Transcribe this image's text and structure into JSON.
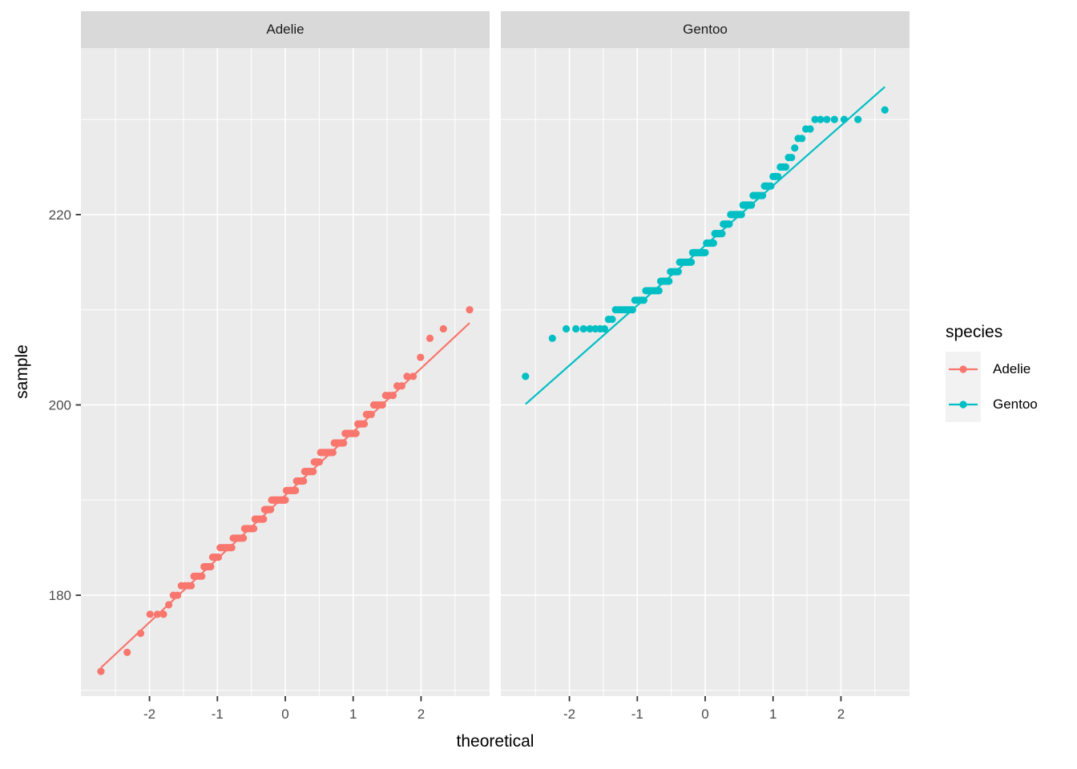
{
  "chart_data": {
    "type": "scatter",
    "chart_kind": "qq-plot",
    "xlabel": "theoretical",
    "ylabel": "sample",
    "x_ticks": [
      -2,
      -1,
      0,
      1,
      2
    ],
    "y_ticks": [
      180,
      200,
      220
    ],
    "x_minor": [
      -2.5,
      -1.5,
      -0.5,
      0.5,
      1.5,
      2.5
    ],
    "y_minor": [
      170,
      190,
      210,
      230
    ],
    "x_range": [
      -3.01,
      3.01
    ],
    "y_range": [
      169.4,
      237.5
    ],
    "grid": "on",
    "legend_position": "right",
    "facets": [
      {
        "label": "Adelie",
        "color": "#F8766D",
        "sample_freq": [
          [
            172,
            1
          ],
          [
            174,
            1
          ],
          [
            176,
            1
          ],
          [
            178,
            3
          ],
          [
            179,
            1
          ],
          [
            180,
            2
          ],
          [
            181,
            4
          ],
          [
            182,
            4
          ],
          [
            183,
            4
          ],
          [
            184,
            4
          ],
          [
            185,
            8
          ],
          [
            186,
            8
          ],
          [
            187,
            8
          ],
          [
            188,
            8
          ],
          [
            189,
            6
          ],
          [
            190,
            13
          ],
          [
            191,
            9
          ],
          [
            192,
            7
          ],
          [
            193,
            8
          ],
          [
            194,
            5
          ],
          [
            195,
            10
          ],
          [
            196,
            7
          ],
          [
            197,
            7
          ],
          [
            198,
            4
          ],
          [
            199,
            3
          ],
          [
            200,
            4
          ],
          [
            201,
            3
          ],
          [
            202,
            2
          ],
          [
            203,
            2
          ],
          [
            205,
            1
          ],
          [
            207,
            1
          ],
          [
            208,
            1
          ],
          [
            210,
            1
          ]
        ]
      },
      {
        "label": "Gentoo",
        "color": "#00BFC4",
        "sample_freq": [
          [
            203,
            1
          ],
          [
            207,
            1
          ],
          [
            208,
            7
          ],
          [
            209,
            2
          ],
          [
            210,
            7
          ],
          [
            211,
            5
          ],
          [
            212,
            8
          ],
          [
            213,
            6
          ],
          [
            214,
            6
          ],
          [
            215,
            9
          ],
          [
            216,
            10
          ],
          [
            217,
            6
          ],
          [
            218,
            6
          ],
          [
            219,
            5
          ],
          [
            220,
            8
          ],
          [
            221,
            6
          ],
          [
            222,
            6
          ],
          [
            223,
            4
          ],
          [
            224,
            3
          ],
          [
            225,
            3
          ],
          [
            226,
            2
          ],
          [
            227,
            1
          ],
          [
            228,
            2
          ],
          [
            229,
            2
          ],
          [
            230,
            6
          ],
          [
            231,
            1
          ]
        ]
      }
    ],
    "legend": {
      "title": "species",
      "entries": [
        {
          "label": "Adelie",
          "color": "#F8766D"
        },
        {
          "label": "Gentoo",
          "color": "#00BFC4"
        }
      ]
    },
    "theme": {
      "panel_bg": "#EBEBEB",
      "strip_bg": "#D9D9D9",
      "grid_color": "#FFFFFF",
      "tick_color": "#333333",
      "tick_label_color": "#4D4D4D",
      "text_color": "#000000",
      "legend_key_bg": "#F2F2F2"
    }
  }
}
